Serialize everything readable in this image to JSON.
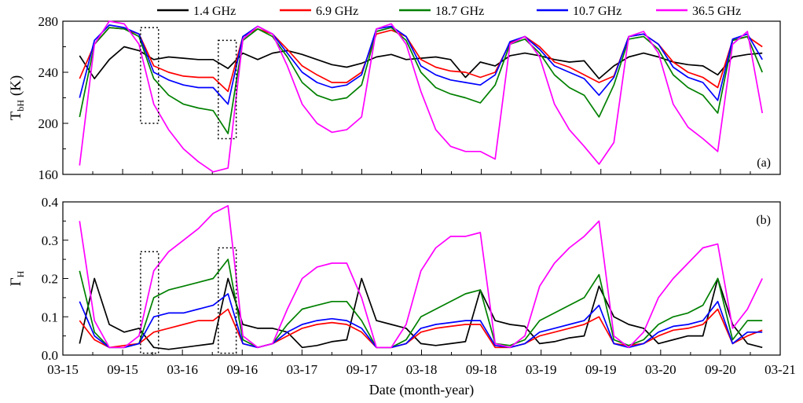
{
  "legend": [
    {
      "name": "1.4 GHz",
      "color": "#000000"
    },
    {
      "name": "6.9 GHz",
      "color": "#ff0000"
    },
    {
      "name": "18.7 GHz",
      "color": "#008000"
    },
    {
      "name": "10.7 GHz",
      "color": "#0000ff"
    },
    {
      "name": "36.5 GHz",
      "color": "#ff00ff"
    }
  ],
  "xlabel": "Date (month-year)",
  "xticks": [
    "03-15",
    "09-15",
    "03-16",
    "09-16",
    "03-17",
    "09-17",
    "03-18",
    "09-18",
    "03-19",
    "09-19",
    "03-20",
    "09-20",
    "03-21"
  ],
  "chart_data": [
    {
      "type": "line",
      "panel": "(a)",
      "ylabel_main": "T",
      "ylabel_sub": "bH",
      "ylabel_unit": " (K)",
      "ylim": [
        160,
        280
      ],
      "yticks": [
        160,
        200,
        240,
        280
      ],
      "x": [
        0,
        0.25,
        0.5,
        0.75,
        1,
        1.25,
        1.5,
        1.75,
        2,
        2.25,
        2.5,
        2.75,
        3,
        3.25,
        3.5,
        3.75,
        4,
        4.25,
        4.5,
        4.75,
        5,
        5.25,
        5.5,
        5.75,
        6,
        6.25,
        6.5,
        6.75,
        7,
        7.25,
        7.5,
        7.75,
        8,
        8.25,
        8.5,
        8.75,
        9,
        9.25,
        9.5,
        9.75,
        10,
        10.25,
        10.5,
        10.75,
        11,
        11.25,
        11.5
      ],
      "series": [
        {
          "name": "1.4 GHz",
          "values": [
            253,
            235,
            250,
            260,
            257,
            250,
            252,
            251,
            250,
            250,
            243,
            255,
            250,
            255,
            257,
            254,
            250,
            246,
            244,
            247,
            252,
            254,
            250,
            251,
            252,
            250,
            236,
            248,
            245,
            253,
            255,
            253,
            250,
            248,
            249,
            235,
            245,
            252,
            255,
            252,
            248,
            246,
            245,
            238,
            252,
            254,
            255
          ]
        },
        {
          "name": "6.9 GHz",
          "values": [
            235,
            262,
            275,
            274,
            270,
            245,
            240,
            237,
            236,
            236,
            225,
            268,
            274,
            270,
            258,
            245,
            238,
            232,
            232,
            240,
            270,
            273,
            268,
            250,
            244,
            241,
            240,
            236,
            240,
            263,
            268,
            260,
            248,
            244,
            238,
            232,
            237,
            268,
            270,
            262,
            248,
            240,
            236,
            228,
            265,
            268,
            260
          ]
        },
        {
          "name": "18.7 GHz",
          "values": [
            205,
            262,
            275,
            274,
            268,
            235,
            222,
            215,
            212,
            210,
            192,
            265,
            274,
            268,
            252,
            232,
            222,
            218,
            220,
            230,
            272,
            275,
            265,
            240,
            228,
            223,
            220,
            216,
            230,
            262,
            266,
            255,
            238,
            228,
            222,
            205,
            230,
            266,
            268,
            258,
            238,
            228,
            222,
            208,
            265,
            268,
            240
          ]
        },
        {
          "name": "10.7 GHz",
          "values": [
            220,
            265,
            277,
            275,
            270,
            240,
            234,
            230,
            228,
            228,
            215,
            268,
            276,
            270,
            255,
            240,
            232,
            228,
            230,
            238,
            274,
            276,
            268,
            245,
            238,
            234,
            232,
            230,
            238,
            264,
            268,
            258,
            245,
            240,
            235,
            222,
            236,
            268,
            270,
            262,
            244,
            236,
            232,
            218,
            266,
            270,
            250
          ]
        },
        {
          "name": "36.5 GHz",
          "values": [
            167,
            262,
            280,
            278,
            262,
            215,
            195,
            180,
            170,
            162,
            165,
            266,
            276,
            270,
            245,
            215,
            200,
            193,
            195,
            205,
            274,
            278,
            262,
            225,
            195,
            182,
            178,
            178,
            172,
            262,
            268,
            252,
            215,
            195,
            182,
            168,
            185,
            268,
            272,
            255,
            215,
            197,
            188,
            178,
            262,
            272,
            208
          ]
        }
      ]
    },
    {
      "type": "line",
      "panel": "(b)",
      "ylabel_main": "Γ",
      "ylabel_sub": "H",
      "ylabel_unit": "",
      "ylim": [
        0,
        0.4
      ],
      "yticks": [
        0.0,
        0.1,
        0.2,
        0.3,
        0.4
      ],
      "x": [
        0,
        0.25,
        0.5,
        0.75,
        1,
        1.25,
        1.5,
        1.75,
        2,
        2.25,
        2.5,
        2.75,
        3,
        3.25,
        3.5,
        3.75,
        4,
        4.25,
        4.5,
        4.75,
        5,
        5.25,
        5.5,
        5.75,
        6,
        6.25,
        6.5,
        6.75,
        7,
        7.25,
        7.5,
        7.75,
        8,
        8.25,
        8.5,
        8.75,
        9,
        9.25,
        9.5,
        9.75,
        10,
        10.25,
        10.5,
        10.75,
        11,
        11.25,
        11.5
      ],
      "series": [
        {
          "name": "1.4 GHz",
          "values": [
            0.03,
            0.2,
            0.08,
            0.06,
            0.07,
            0.02,
            0.015,
            0.02,
            0.025,
            0.03,
            0.2,
            0.08,
            0.07,
            0.07,
            0.06,
            0.02,
            0.025,
            0.035,
            0.04,
            0.2,
            0.09,
            0.08,
            0.07,
            0.03,
            0.025,
            0.03,
            0.035,
            0.17,
            0.09,
            0.08,
            0.075,
            0.03,
            0.035,
            0.045,
            0.05,
            0.18,
            0.1,
            0.08,
            0.07,
            0.03,
            0.04,
            0.05,
            0.05,
            0.2,
            0.08,
            0.03,
            0.02
          ]
        },
        {
          "name": "6.9 GHz",
          "values": [
            0.09,
            0.04,
            0.02,
            0.025,
            0.03,
            0.06,
            0.07,
            0.08,
            0.09,
            0.09,
            0.12,
            0.03,
            0.02,
            0.03,
            0.05,
            0.07,
            0.08,
            0.085,
            0.08,
            0.06,
            0.02,
            0.02,
            0.03,
            0.06,
            0.07,
            0.075,
            0.08,
            0.08,
            0.02,
            0.02,
            0.03,
            0.05,
            0.06,
            0.07,
            0.08,
            0.1,
            0.03,
            0.025,
            0.03,
            0.05,
            0.065,
            0.07,
            0.08,
            0.12,
            0.03,
            0.05,
            0.065
          ]
        },
        {
          "name": "18.7 GHz",
          "values": [
            0.22,
            0.06,
            0.02,
            0.02,
            0.03,
            0.15,
            0.17,
            0.18,
            0.19,
            0.2,
            0.25,
            0.04,
            0.02,
            0.03,
            0.08,
            0.12,
            0.13,
            0.14,
            0.14,
            0.09,
            0.02,
            0.02,
            0.04,
            0.1,
            0.12,
            0.14,
            0.16,
            0.17,
            0.03,
            0.025,
            0.04,
            0.09,
            0.11,
            0.13,
            0.15,
            0.21,
            0.04,
            0.025,
            0.04,
            0.08,
            0.1,
            0.11,
            0.13,
            0.2,
            0.04,
            0.09,
            0.09
          ]
        },
        {
          "name": "10.7 GHz",
          "values": [
            0.14,
            0.05,
            0.02,
            0.02,
            0.03,
            0.1,
            0.11,
            0.11,
            0.12,
            0.13,
            0.16,
            0.03,
            0.02,
            0.03,
            0.06,
            0.08,
            0.09,
            0.095,
            0.09,
            0.07,
            0.02,
            0.02,
            0.03,
            0.07,
            0.08,
            0.085,
            0.09,
            0.09,
            0.025,
            0.02,
            0.03,
            0.06,
            0.07,
            0.08,
            0.09,
            0.13,
            0.03,
            0.02,
            0.03,
            0.06,
            0.075,
            0.08,
            0.09,
            0.14,
            0.03,
            0.06,
            0.06
          ]
        },
        {
          "name": "36.5 GHz",
          "values": [
            0.35,
            0.09,
            0.02,
            0.02,
            0.05,
            0.22,
            0.27,
            0.3,
            0.33,
            0.37,
            0.39,
            0.05,
            0.02,
            0.03,
            0.12,
            0.2,
            0.23,
            0.24,
            0.24,
            0.15,
            0.02,
            0.02,
            0.08,
            0.22,
            0.28,
            0.31,
            0.31,
            0.32,
            0.03,
            0.02,
            0.05,
            0.18,
            0.24,
            0.28,
            0.31,
            0.35,
            0.05,
            0.02,
            0.06,
            0.15,
            0.2,
            0.24,
            0.28,
            0.29,
            0.07,
            0.12,
            0.2
          ]
        }
      ]
    }
  ]
}
